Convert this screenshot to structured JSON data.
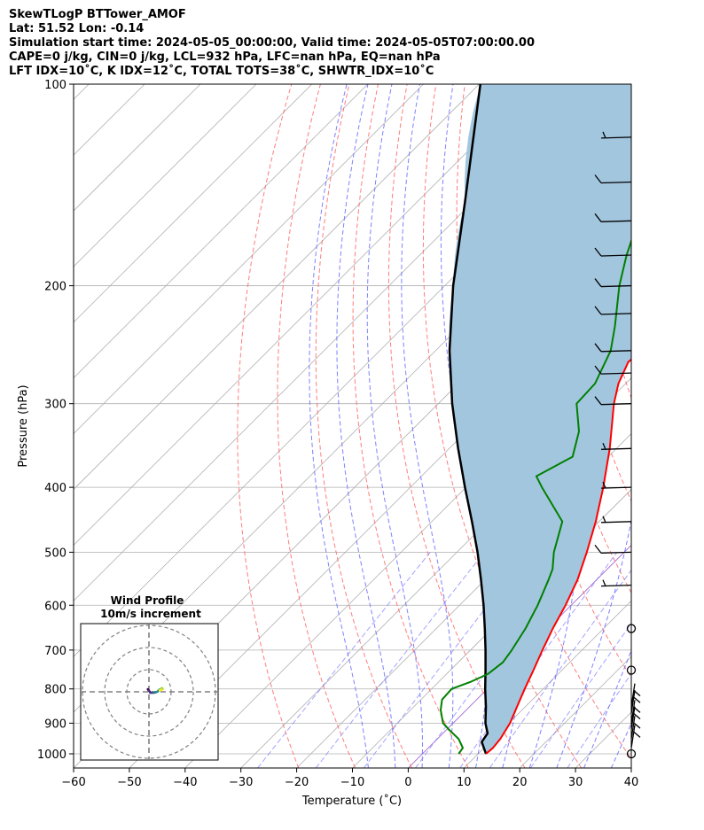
{
  "title_lines": [
    "SkewTLogP BTTower_AMOF",
    "Lat: 51.52   Lon: -0.14",
    "Simulation start time: 2024-05-05_00:00:00, Valid time: 2024-05-05T07:00:00.00",
    "CAPE=0 j/kg, CIN=0 j/kg, LCL=932 hPa, LFC=nan hPa, EQ=nan hPa",
    "LFT IDX=10˚C, K IDX=12˚C, TOTAL TOTS=38˚C, SHWTR_IDX=10˚C"
  ],
  "chart_data": {
    "type": "line",
    "subtype": "skew-t log-p",
    "xlabel": "Temperature (˚C)",
    "ylabel": "Pressure (hPa)",
    "xlim": [
      -60,
      40
    ],
    "ylim": [
      1050,
      100
    ],
    "xticks": [
      -60,
      -50,
      -40,
      -30,
      -20,
      -10,
      0,
      10,
      20,
      30,
      40
    ],
    "yticks": [
      1000,
      900,
      800,
      700,
      600,
      500,
      400,
      300,
      200,
      100
    ],
    "y_scale": "log",
    "grid": true,
    "colors": {
      "temperature": "#ff0000",
      "dewpoint": "#008000",
      "parcel": "#000000",
      "cape_fill": "#a3c6df",
      "dry_adiabat": "#ff6666",
      "moist_adiabat": "#6a6aff",
      "mixing_ratio": "#7c7cff",
      "isotherm": "#b0b0b0",
      "freezing_adiabat": "#9955cc"
    },
    "series": [
      {
        "name": "",
        "role": "temperature",
        "pressure": [
          1000,
          980,
          950,
          900,
          850,
          800,
          750,
          700,
          650,
          600,
          550,
          500,
          450,
          400,
          350,
          300,
          280,
          260,
          250,
          230,
          200,
          180,
          160,
          140,
          120,
          100
        ],
        "temperature": [
          11.4,
          11.6,
          11.3,
          10.2,
          8.5,
          6.7,
          4.9,
          2.9,
          0.9,
          -1.0,
          -3.4,
          -6.7,
          -10.6,
          -15.4,
          -21.2,
          -28.5,
          -31.3,
          -33.4,
          -33.0,
          -32.5,
          -32.8,
          -33.3,
          -34.5,
          -36.5,
          -38.6,
          -40.9
        ]
      },
      {
        "name": "",
        "role": "dewpoint",
        "pressure": [
          1000,
          980,
          950,
          920,
          900,
          860,
          830,
          800,
          780,
          760,
          730,
          700,
          650,
          600,
          550,
          530,
          500,
          450,
          400,
          385,
          360,
          330,
          300,
          280,
          250,
          230,
          200,
          180,
          160,
          140,
          120,
          100
        ],
        "temperature": [
          6.5,
          6.2,
          3.8,
          0.4,
          -1.8,
          -4.6,
          -6.2,
          -6.4,
          -4.2,
          -2.6,
          -2.0,
          -2.6,
          -4.0,
          -6.0,
          -8.6,
          -9.8,
          -12.6,
          -16.6,
          -26.4,
          -29.4,
          -26.4,
          -29.8,
          -35.2,
          -35.5,
          -38.6,
          -42.2,
          -48.7,
          -52.9,
          -57.0,
          -61.3,
          -66.2,
          -71.8
        ]
      },
      {
        "name": "",
        "role": "parcel",
        "pressure": [
          1000,
          960,
          932,
          900,
          850,
          800,
          750,
          700,
          650,
          600,
          550,
          500,
          450,
          400,
          350,
          300,
          250,
          200,
          150,
          100
        ],
        "temperature": [
          11.4,
          8.5,
          8.0,
          5.8,
          2.9,
          -0.4,
          -3.7,
          -7.3,
          -11.3,
          -15.7,
          -20.7,
          -26.3,
          -32.8,
          -40.2,
          -48.4,
          -57.5,
          -67.5,
          -78.5,
          -91.4,
          -109.8
        ]
      }
    ],
    "wind_barbs": {
      "x_position_temperature": 40,
      "pressure": [
        1000,
        980,
        950,
        920,
        900,
        870,
        850,
        750,
        650,
        560,
        500,
        450,
        400,
        350,
        300,
        270,
        250,
        220,
        200,
        180,
        160,
        140,
        120
      ],
      "barbs": [
        "calm",
        "short",
        "short",
        "short",
        "short",
        "short",
        "short",
        "calm",
        "calm",
        "half",
        "full",
        "half",
        "half",
        "half",
        "full",
        "full",
        "full",
        "full",
        "full",
        "full",
        "full",
        "full",
        "half"
      ]
    },
    "hodograph": {
      "title": "Wind Profile",
      "subtitle": "10m/s increment",
      "rings": 3,
      "u": [
        -0.4,
        0.0,
        0.5,
        1.2,
        1.8,
        2.6,
        3.2,
        3.6,
        4.2,
        4.6,
        4.8,
        4.4,
        3.8
      ],
      "v": [
        0.9,
        0.4,
        -0.3,
        -0.3,
        -0.3,
        -0.1,
        0.2,
        0.7,
        1.0,
        1.3,
        1.0,
        0.7,
        0.5
      ],
      "colormap": "viridis"
    }
  }
}
